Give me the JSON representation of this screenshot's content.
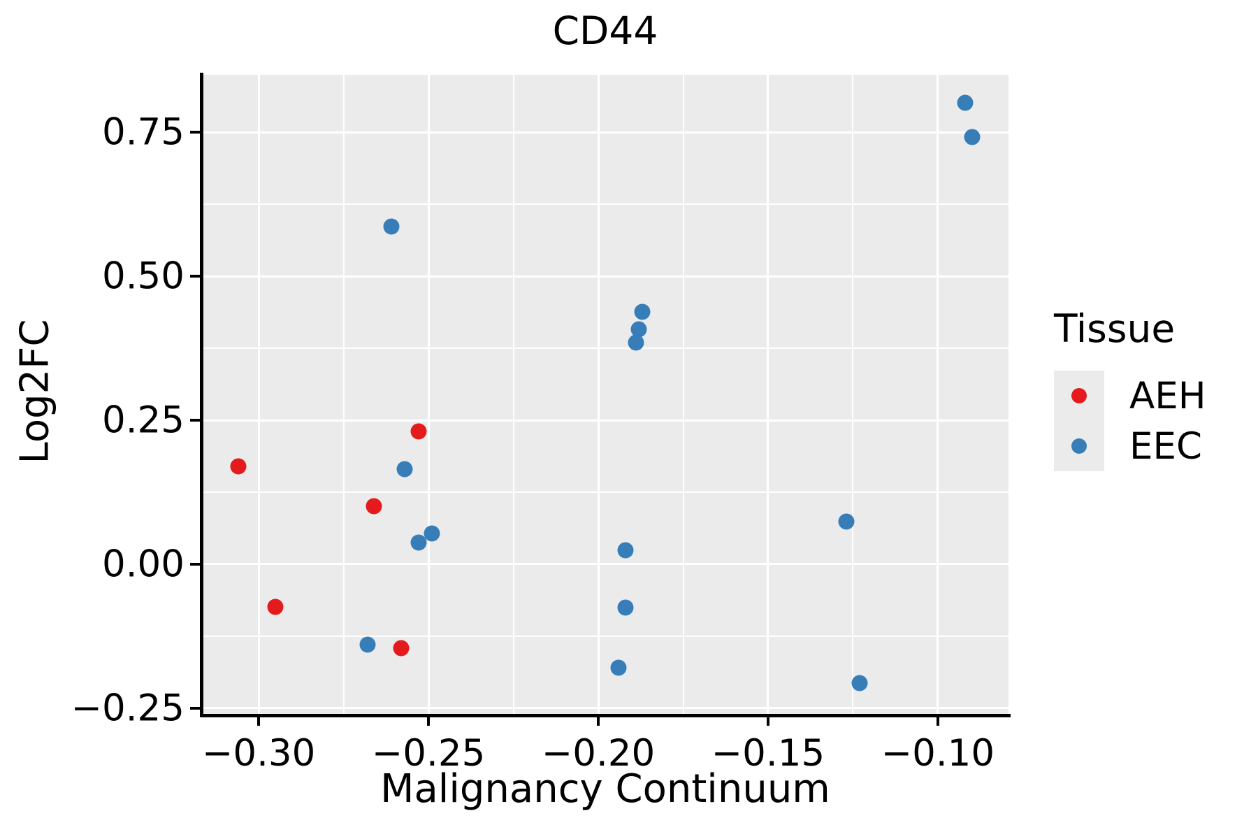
{
  "figure": {
    "title": "CD44"
  },
  "chart_data": {
    "type": "scatter",
    "title": "CD44",
    "xlabel": "Malignancy Continuum",
    "ylabel": "Log2FC",
    "xlim": [
      -0.3165,
      -0.0792
    ],
    "ylim": [
      -0.26,
      0.85
    ],
    "grid": true,
    "panel_background": "#EBEBEB",
    "gridline_color": "#FFFFFF",
    "x_ticks": [
      {
        "value": -0.3,
        "label": "−0.30"
      },
      {
        "value": -0.25,
        "label": "−0.25"
      },
      {
        "value": -0.2,
        "label": "−0.20"
      },
      {
        "value": -0.15,
        "label": "−0.15"
      },
      {
        "value": -0.1,
        "label": "−0.10"
      }
    ],
    "y_ticks": [
      {
        "value": 0.75,
        "label": "0.75"
      },
      {
        "value": 0.5,
        "label": "0.50"
      },
      {
        "value": 0.25,
        "label": "0.25"
      },
      {
        "value": 0.0,
        "label": "0.00"
      },
      {
        "value": -0.25,
        "label": "−0.25"
      }
    ],
    "x_minor_ticks": [
      -0.275,
      -0.225,
      -0.175,
      -0.125
    ],
    "y_minor_ticks": [
      0.625,
      0.375,
      0.125,
      -0.125
    ],
    "legend": {
      "title": "Tissue",
      "position": "right"
    },
    "series": [
      {
        "name": "AEH",
        "color": "#E41A1C",
        "points": [
          [
            -0.306,
            0.17
          ],
          [
            -0.295,
            -0.074
          ],
          [
            -0.266,
            0.101
          ],
          [
            -0.258,
            -0.146
          ],
          [
            -0.253,
            0.231
          ]
        ]
      },
      {
        "name": "EEC",
        "color": "#377EB8",
        "points": [
          [
            -0.261,
            0.586
          ],
          [
            -0.257,
            0.165
          ],
          [
            -0.268,
            -0.14
          ],
          [
            -0.253,
            0.038
          ],
          [
            -0.249,
            0.053
          ],
          [
            -0.187,
            0.438
          ],
          [
            -0.188,
            0.408
          ],
          [
            -0.189,
            0.385
          ],
          [
            -0.192,
            0.024
          ],
          [
            -0.192,
            -0.075
          ],
          [
            -0.194,
            -0.18
          ],
          [
            -0.127,
            0.074
          ],
          [
            -0.123,
            -0.207
          ],
          [
            -0.092,
            0.801
          ],
          [
            -0.09,
            0.742
          ]
        ]
      }
    ]
  }
}
